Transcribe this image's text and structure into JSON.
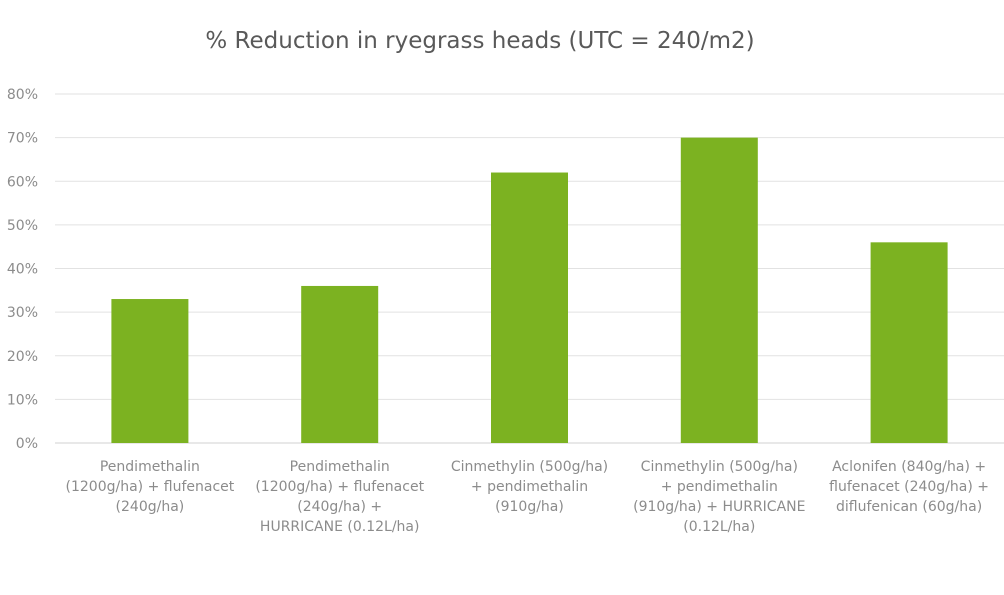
{
  "chart_data": {
    "type": "bar",
    "title": "% Reduction in ryegrass heads (UTC = 240/m2)",
    "xlabel": "",
    "ylabel": "",
    "ylim": [
      0,
      80
    ],
    "yticks": [
      "0%",
      "10%",
      "20%",
      "30%",
      "40%",
      "50%",
      "60%",
      "70%",
      "80%"
    ],
    "grid": true,
    "legend": "none",
    "bar_color": "#7cb221",
    "categories": [
      [
        "Pendimethalin",
        "(1200g/ha) + flufenacet",
        "(240g/ha)"
      ],
      [
        "Pendimethalin",
        "(1200g/ha) + flufenacet",
        "(240g/ha) +",
        "HURRICANE (0.12L/ha)"
      ],
      [
        "Cinmethylin (500g/ha)",
        "+ pendimethalin",
        "(910g/ha)"
      ],
      [
        "Cinmethylin (500g/ha)",
        "+ pendimethalin",
        "(910g/ha) + HURRICANE",
        "(0.12L/ha)"
      ],
      [
        "Aclonifen (840g/ha) +",
        "flufenacet (240g/ha) +",
        "diflufenican (60g/ha)"
      ]
    ],
    "values": [
      33,
      36,
      62,
      70,
      46
    ]
  }
}
